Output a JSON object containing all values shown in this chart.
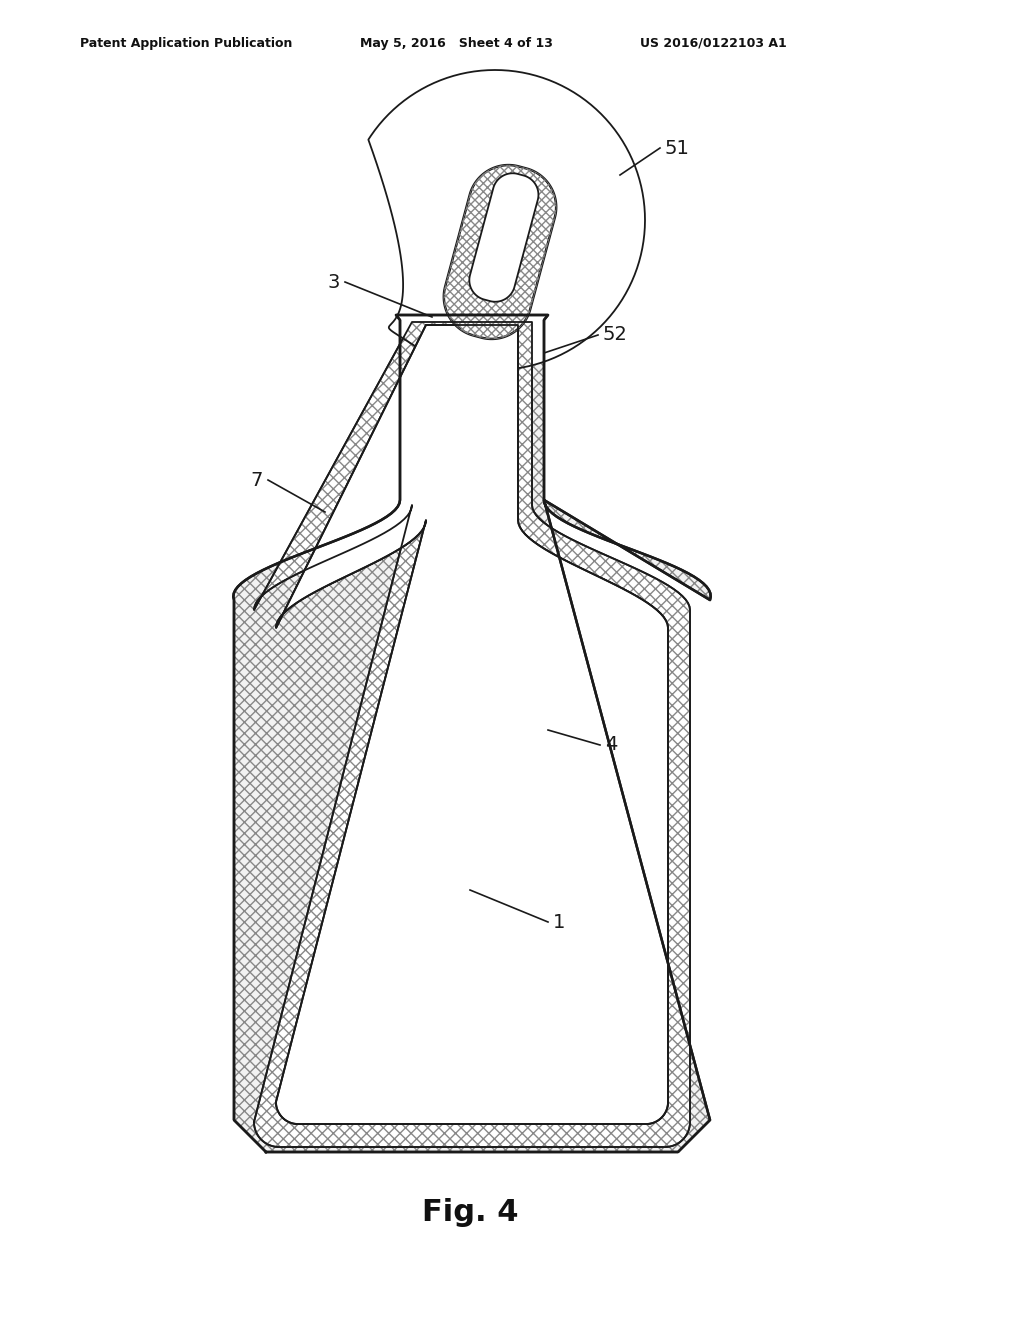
{
  "bg_color": "#ffffff",
  "header_left": "Patent Application Publication",
  "header_mid": "May 5, 2016   Sheet 4 of 13",
  "header_right": "US 2016/0122103 A1",
  "caption": "Fig. 4",
  "label_51": "51",
  "label_52": "52",
  "label_3": "3",
  "label_7": "7",
  "label_4": "4",
  "label_1": "1",
  "line_color": "#1a1a1a",
  "hatch_color": "#666666"
}
